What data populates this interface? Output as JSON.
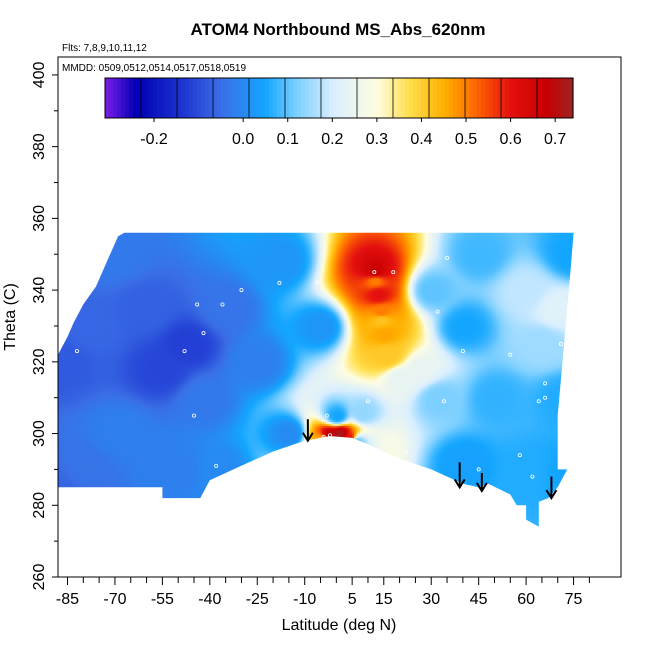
{
  "chart_data": {
    "type": "heatmap",
    "title": "ATOM4 Northbound MS_Abs_620nm",
    "note_flights": "Flts: 7,8,9,10,11,12",
    "note_dates": "MMDD: 0509,0512,0514,0517,0518,0519",
    "xlabel": "Latitude (deg N)",
    "ylabel": "Theta (C)",
    "xlim": [
      -88,
      90
    ],
    "ylim": [
      260,
      405
    ],
    "xticks": [
      -85,
      -70,
      -55,
      -40,
      -25,
      -10,
      5,
      15,
      30,
      45,
      60,
      75
    ],
    "yticks": [
      260,
      280,
      300,
      320,
      340,
      360,
      380,
      400
    ],
    "colorbar": {
      "range": [
        -0.31,
        0.74
      ],
      "ticks": [
        -0.2,
        0.0,
        0.1,
        0.2,
        0.3,
        0.4,
        0.5,
        0.6,
        0.7
      ],
      "tick_labels": [
        "-0.2",
        "0.0",
        "0.1",
        "0.2",
        "0.3",
        "0.4",
        "0.5",
        "0.6",
        "0.7"
      ],
      "stops": [
        {
          "v": -0.31,
          "c": "#7a1fe8"
        },
        {
          "v": -0.24,
          "c": "#0000b4"
        },
        {
          "v": -0.14,
          "c": "#1c32d0"
        },
        {
          "v": -0.05,
          "c": "#3a6ee6"
        },
        {
          "v": 0.05,
          "c": "#13a6ff"
        },
        {
          "v": 0.12,
          "c": "#7ccfff"
        },
        {
          "v": 0.2,
          "c": "#d8eeff"
        },
        {
          "v": 0.3,
          "c": "#fffde0"
        },
        {
          "v": 0.37,
          "c": "#ffe050"
        },
        {
          "v": 0.45,
          "c": "#ffb000"
        },
        {
          "v": 0.52,
          "c": "#ff6800"
        },
        {
          "v": 0.6,
          "c": "#e41010"
        },
        {
          "v": 0.68,
          "c": "#c80000"
        },
        {
          "v": 0.74,
          "c": "#9c2424"
        }
      ]
    },
    "field_points": [
      {
        "lat": -87,
        "theta": 285,
        "v": -0.06
      },
      {
        "lat": -87,
        "theta": 320,
        "v": -0.08
      },
      {
        "lat": -80,
        "theta": 290,
        "v": -0.04
      },
      {
        "lat": -78,
        "theta": 330,
        "v": -0.06
      },
      {
        "lat": -70,
        "theta": 350,
        "v": -0.03
      },
      {
        "lat": -68,
        "theta": 300,
        "v": -0.02
      },
      {
        "lat": -60,
        "theta": 335,
        "v": -0.07
      },
      {
        "lat": -55,
        "theta": 318,
        "v": -0.11
      },
      {
        "lat": -50,
        "theta": 290,
        "v": -0.02
      },
      {
        "lat": -47,
        "theta": 325,
        "v": -0.12
      },
      {
        "lat": -42,
        "theta": 310,
        "v": -0.03
      },
      {
        "lat": -38,
        "theta": 290,
        "v": 0.0
      },
      {
        "lat": -35,
        "theta": 335,
        "v": -0.04
      },
      {
        "lat": -25,
        "theta": 320,
        "v": -0.02
      },
      {
        "lat": -18,
        "theta": 348,
        "v": 0.02
      },
      {
        "lat": -15,
        "theta": 300,
        "v": 0.0
      },
      {
        "lat": -5,
        "theta": 330,
        "v": 0.02
      },
      {
        "lat": 0,
        "theta": 305,
        "v": 0.05
      },
      {
        "lat": 2,
        "theta": 296,
        "v": 0.2
      },
      {
        "lat": 8,
        "theta": 306,
        "v": 0.14
      },
      {
        "lat": 12,
        "theta": 343,
        "v": 0.5
      },
      {
        "lat": 14,
        "theta": 332,
        "v": 0.42
      },
      {
        "lat": 16,
        "theta": 322,
        "v": 0.38
      },
      {
        "lat": 20,
        "theta": 316,
        "v": 0.24
      },
      {
        "lat": 26,
        "theta": 318,
        "v": 0.24
      },
      {
        "lat": 32,
        "theta": 310,
        "v": 0.12
      },
      {
        "lat": 30,
        "theta": 340,
        "v": 0.1
      },
      {
        "lat": 40,
        "theta": 292,
        "v": 0.04
      },
      {
        "lat": 40,
        "theta": 330,
        "v": 0.05
      },
      {
        "lat": 45,
        "theta": 350,
        "v": 0.08
      },
      {
        "lat": 50,
        "theta": 310,
        "v": 0.07
      },
      {
        "lat": 60,
        "theta": 290,
        "v": 0.06
      },
      {
        "lat": 60,
        "theta": 340,
        "v": 0.18
      },
      {
        "lat": 65,
        "theta": 325,
        "v": 0.15
      },
      {
        "lat": 70,
        "theta": 335,
        "v": 0.22
      },
      {
        "lat": 72,
        "theta": 310,
        "v": 0.06
      },
      {
        "lat": 74,
        "theta": 350,
        "v": 0.05
      },
      {
        "lat": 73,
        "theta": 290,
        "v": 0.05
      },
      {
        "lat": -5,
        "theta": 298,
        "v": 0.45
      },
      {
        "lat": -2,
        "theta": 299.5,
        "v": 0.7
      },
      {
        "lat": 1,
        "theta": 300,
        "v": 0.72
      },
      {
        "lat": 4,
        "theta": 299,
        "v": 0.6
      },
      {
        "lat": 6,
        "theta": 298,
        "v": 0.1
      },
      {
        "lat": 12,
        "theta": 345,
        "v": 0.68
      },
      {
        "lat": 13,
        "theta": 339,
        "v": 0.6
      },
      {
        "lat": 14,
        "theta": 334,
        "v": 0.5
      },
      {
        "lat": 15,
        "theta": 328,
        "v": 0.46
      },
      {
        "lat": 16,
        "theta": 322,
        "v": 0.44
      }
    ],
    "shape_top": [
      [
        -88,
        322
      ],
      [
        -85,
        327
      ],
      [
        -83,
        331
      ],
      [
        -80,
        336
      ],
      [
        -76,
        341
      ],
      [
        -73,
        347
      ],
      [
        -70,
        353
      ],
      [
        -69,
        355
      ],
      [
        -67,
        356
      ],
      [
        -40,
        356
      ],
      [
        0,
        356
      ],
      [
        40,
        356
      ],
      [
        75,
        356
      ]
    ],
    "shape_bottom": [
      [
        -88,
        285
      ],
      [
        -55,
        285
      ],
      [
        -55,
        282
      ],
      [
        -43,
        282
      ],
      [
        -40,
        287
      ],
      [
        -30,
        291
      ],
      [
        -20,
        295
      ],
      [
        -10,
        298
      ],
      [
        -2,
        299.3
      ],
      [
        5,
        298.8
      ],
      [
        10,
        297
      ],
      [
        20,
        293
      ],
      [
        30,
        290
      ],
      [
        40,
        286
      ],
      [
        45,
        285
      ],
      [
        48,
        286
      ],
      [
        55,
        283
      ],
      [
        57,
        280
      ],
      [
        60,
        280
      ],
      [
        60,
        276
      ],
      [
        64,
        274
      ],
      [
        64,
        281
      ],
      [
        67,
        282
      ],
      [
        70,
        285
      ],
      [
        73,
        290
      ],
      [
        75,
        290
      ]
    ],
    "shape_right": [
      [
        75,
        356
      ],
      [
        74,
        345
      ],
      [
        73,
        335
      ],
      [
        72,
        325
      ],
      [
        71,
        315
      ],
      [
        70,
        305
      ],
      [
        70,
        290
      ]
    ],
    "sample_points": [
      [
        -86,
        284
      ],
      [
        -82,
        323
      ],
      [
        -48,
        323
      ],
      [
        -44,
        336
      ],
      [
        -42,
        328
      ],
      [
        -36,
        336
      ],
      [
        -30,
        340
      ],
      [
        -18,
        342
      ],
      [
        -6,
        342
      ],
      [
        -3,
        305
      ],
      [
        -4,
        299
      ],
      [
        -2,
        299.5
      ],
      [
        -45,
        305
      ],
      [
        -38,
        291
      ],
      [
        10,
        309
      ],
      [
        12,
        345
      ],
      [
        18,
        345
      ],
      [
        22,
        295
      ],
      [
        32,
        334
      ],
      [
        34,
        309
      ],
      [
        45,
        290
      ],
      [
        40,
        323
      ],
      [
        55,
        322
      ],
      [
        58,
        294
      ],
      [
        62,
        288
      ],
      [
        64,
        309
      ],
      [
        66,
        314
      ],
      [
        66,
        310
      ],
      [
        71,
        325
      ],
      [
        49,
        285
      ],
      [
        35,
        349
      ]
    ],
    "arrows": [
      {
        "lat": -9,
        "theta": 304,
        "tip": 298
      },
      {
        "lat": 39,
        "theta": 292,
        "tip": 285
      },
      {
        "lat": 46,
        "theta": 289,
        "tip": 284
      },
      {
        "lat": 68,
        "theta": 288,
        "tip": 282
      }
    ]
  }
}
